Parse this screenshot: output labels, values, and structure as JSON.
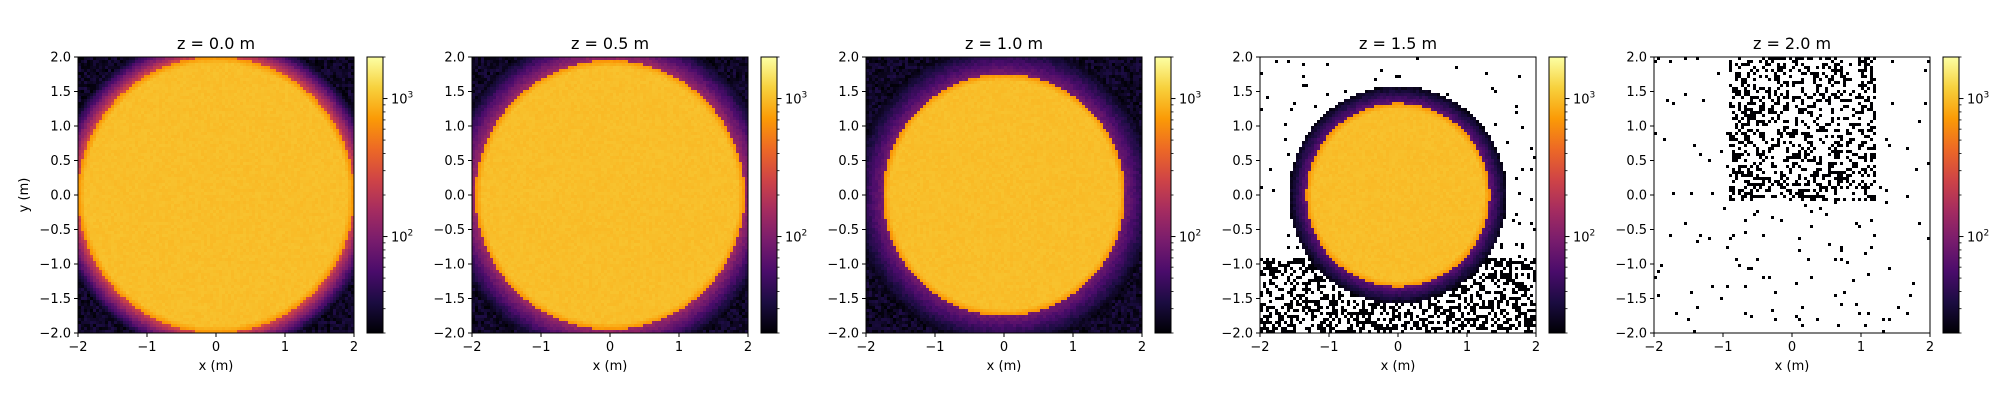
{
  "chart_data": [
    {
      "type": "heatmap",
      "title": "z = 0.0 m",
      "xlabel": "x (m)",
      "ylabel": "y (m)",
      "xlim": [
        -2,
        2
      ],
      "ylim": [
        -2,
        2
      ],
      "disc_radius": 2.0,
      "halo_width": 0.35,
      "halo_level": 0.55,
      "empty_fraction": 0.0,
      "colorbar_scale": "log",
      "colorbar_range": [
        20,
        2000
      ],
      "colorbar_ticks": [
        {
          "value": 1000,
          "label": "10",
          "exp": "3"
        },
        {
          "value": 100,
          "label": "10",
          "exp": "2"
        }
      ]
    },
    {
      "type": "heatmap",
      "title": "z = 0.5 m",
      "xlabel": "x (m)",
      "ylabel": "",
      "xlim": [
        -2,
        2
      ],
      "ylim": [
        -2,
        2
      ],
      "disc_radius": 1.95,
      "halo_width": 0.45,
      "halo_level": 0.4,
      "empty_fraction": 0.0,
      "colorbar_scale": "log",
      "colorbar_range": [
        20,
        2000
      ],
      "colorbar_ticks": [
        {
          "value": 1000,
          "label": "10",
          "exp": "3"
        },
        {
          "value": 100,
          "label": "10",
          "exp": "2"
        }
      ]
    },
    {
      "type": "heatmap",
      "title": "z = 1.0 m",
      "xlabel": "x (m)",
      "ylabel": "",
      "xlim": [
        -2,
        2
      ],
      "ylim": [
        -2,
        2
      ],
      "disc_radius": 1.75,
      "halo_width": 0.45,
      "halo_level": 0.3,
      "empty_fraction": 0.0,
      "colorbar_scale": "log",
      "colorbar_range": [
        20,
        2000
      ],
      "colorbar_ticks": [
        {
          "value": 1000,
          "label": "10",
          "exp": "3"
        },
        {
          "value": 100,
          "label": "10",
          "exp": "2"
        }
      ]
    },
    {
      "type": "heatmap",
      "title": "z = 1.5 m",
      "xlabel": "x (m)",
      "ylabel": "",
      "xlim": [
        -2,
        2
      ],
      "ylim": [
        -2,
        2
      ],
      "disc_radius": 1.33,
      "halo_width": 0.25,
      "halo_level": 0.25,
      "empty_fraction": 0.5,
      "colorbar_scale": "log",
      "colorbar_range": [
        20,
        2000
      ],
      "colorbar_ticks": [
        {
          "value": 1000,
          "label": "10",
          "exp": "3"
        },
        {
          "value": 100,
          "label": "10",
          "exp": "2"
        }
      ]
    },
    {
      "type": "heatmap",
      "title": "z = 2.0 m",
      "xlabel": "x (m)",
      "ylabel": "",
      "xlim": [
        -2,
        2
      ],
      "ylim": [
        -2,
        2
      ],
      "disc_radius": 0.0,
      "halo_width": 0.0,
      "halo_level": 0.0,
      "empty_fraction": 0.95,
      "colorbar_scale": "log",
      "colorbar_range": [
        20,
        2000
      ],
      "colorbar_ticks": [
        {
          "value": 1000,
          "label": "10",
          "exp": "3"
        },
        {
          "value": 100,
          "label": "10",
          "exp": "2"
        }
      ]
    }
  ],
  "axis_ticks": [
    "-2",
    "-1",
    "0",
    "1",
    "2"
  ],
  "y_ticks": [
    "2.0",
    "1.5",
    "1.0",
    "0.5",
    "0.0",
    "-0.5",
    "-1.0",
    "-1.5",
    "-2.0"
  ],
  "colormap": [
    "#000004",
    "#1b0c41",
    "#4a0c6b",
    "#781c6d",
    "#a52c60",
    "#cf4446",
    "#ed6925",
    "#fb9b06",
    "#f7d13d",
    "#fcffa4"
  ]
}
